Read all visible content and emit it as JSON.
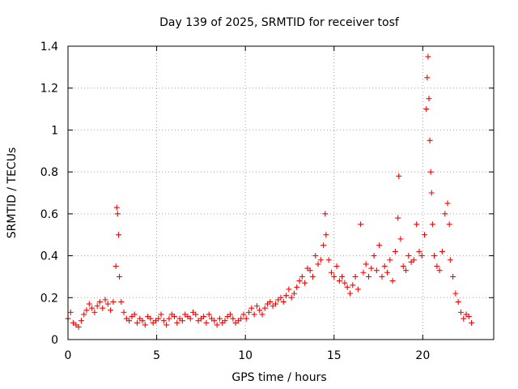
{
  "chart_data": {
    "type": "scatter",
    "title": "Day 139 of 2025, SRMTID for receiver tosf",
    "xlabel": "GPS time / hours",
    "ylabel": "SRMTID / TECUs",
    "xlim": [
      0,
      24
    ],
    "ylim": [
      0,
      1.4
    ],
    "xticks": [
      0,
      5,
      10,
      15,
      20
    ],
    "xtick_labels": [
      "0",
      "5",
      "10",
      "15",
      "20"
    ],
    "yticks": [
      0,
      0.2,
      0.4,
      0.6,
      0.8,
      1.0,
      1.2,
      1.4
    ],
    "ytick_labels": [
      "0",
      "0.2",
      "0.4",
      "0.6",
      "0.8",
      "1",
      "1.2",
      "1.4"
    ],
    "grid": true,
    "marker": "plus",
    "series": [
      {
        "name": "SRMTID",
        "color": "#ff0000",
        "x": [
          0.0,
          0.15,
          0.3,
          0.45,
          0.6,
          0.75,
          0.9,
          1.05,
          1.2,
          1.35,
          1.5,
          1.65,
          1.8,
          1.95,
          2.1,
          2.25,
          2.4,
          2.55,
          2.7,
          2.75,
          2.8,
          2.85,
          2.9,
          3.0,
          3.15,
          3.3,
          3.45,
          3.6,
          3.75,
          3.9,
          4.05,
          4.2,
          4.35,
          4.5,
          4.65,
          4.8,
          4.95,
          5.1,
          5.25,
          5.4,
          5.55,
          5.7,
          5.85,
          6.0,
          6.15,
          6.3,
          6.45,
          6.6,
          6.75,
          6.9,
          7.05,
          7.2,
          7.35,
          7.5,
          7.65,
          7.8,
          7.95,
          8.1,
          8.25,
          8.4,
          8.55,
          8.7,
          8.85,
          9.0,
          9.15,
          9.3,
          9.45,
          9.6,
          9.75,
          9.9,
          10.05,
          10.2,
          10.35,
          10.5,
          10.65,
          10.8,
          10.95,
          11.1,
          11.25,
          11.4,
          11.55,
          11.7,
          11.85,
          12.0,
          12.15,
          12.3,
          12.45,
          12.6,
          12.75,
          12.9,
          13.05,
          13.2,
          13.35,
          13.5,
          13.65,
          13.8,
          13.95,
          14.1,
          14.25,
          14.4,
          14.5,
          14.55,
          14.7,
          14.85,
          15.0,
          15.15,
          15.3,
          15.45,
          15.6,
          15.75,
          15.9,
          16.05,
          16.2,
          16.35,
          16.5,
          16.65,
          16.8,
          16.95,
          17.1,
          17.25,
          17.4,
          17.55,
          17.7,
          17.85,
          18.0,
          18.15,
          18.3,
          18.45,
          18.6,
          18.65,
          18.75,
          18.9,
          19.05,
          19.2,
          19.35,
          19.5,
          19.65,
          19.8,
          19.95,
          20.1,
          20.2,
          20.25,
          20.3,
          20.35,
          20.4,
          20.45,
          20.5,
          20.55,
          20.65,
          20.8,
          20.95,
          21.1,
          21.25,
          21.4,
          21.5,
          21.55,
          21.7,
          21.85,
          22.0,
          22.15,
          22.3,
          22.45,
          22.6,
          22.75
        ],
        "y": [
          0.1,
          0.13,
          0.08,
          0.07,
          0.06,
          0.09,
          0.12,
          0.14,
          0.17,
          0.15,
          0.13,
          0.16,
          0.18,
          0.15,
          0.19,
          0.17,
          0.14,
          0.18,
          0.35,
          0.63,
          0.6,
          0.5,
          0.3,
          0.18,
          0.13,
          0.1,
          0.09,
          0.11,
          0.12,
          0.08,
          0.1,
          0.09,
          0.07,
          0.11,
          0.1,
          0.08,
          0.09,
          0.1,
          0.12,
          0.09,
          0.07,
          0.1,
          0.12,
          0.11,
          0.08,
          0.1,
          0.09,
          0.12,
          0.11,
          0.1,
          0.13,
          0.12,
          0.09,
          0.1,
          0.11,
          0.08,
          0.12,
          0.1,
          0.09,
          0.07,
          0.1,
          0.08,
          0.09,
          0.11,
          0.12,
          0.1,
          0.08,
          0.09,
          0.1,
          0.12,
          0.1,
          0.13,
          0.15,
          0.12,
          0.16,
          0.14,
          0.12,
          0.15,
          0.17,
          0.18,
          0.16,
          0.17,
          0.19,
          0.2,
          0.18,
          0.21,
          0.24,
          0.2,
          0.22,
          0.25,
          0.28,
          0.3,
          0.27,
          0.34,
          0.33,
          0.3,
          0.4,
          0.36,
          0.38,
          0.45,
          0.6,
          0.5,
          0.38,
          0.32,
          0.3,
          0.35,
          0.28,
          0.3,
          0.27,
          0.25,
          0.22,
          0.26,
          0.3,
          0.24,
          0.55,
          0.32,
          0.36,
          0.3,
          0.34,
          0.4,
          0.33,
          0.45,
          0.3,
          0.35,
          0.32,
          0.38,
          0.28,
          0.42,
          0.58,
          0.78,
          0.48,
          0.35,
          0.33,
          0.4,
          0.37,
          0.38,
          0.55,
          0.42,
          0.4,
          0.5,
          1.1,
          1.25,
          1.35,
          1.15,
          0.95,
          0.8,
          0.7,
          0.55,
          0.4,
          0.35,
          0.33,
          0.42,
          0.6,
          0.65,
          0.55,
          0.38,
          0.3,
          0.22,
          0.18,
          0.13,
          0.1,
          0.12,
          0.11,
          0.08
        ]
      }
    ]
  }
}
